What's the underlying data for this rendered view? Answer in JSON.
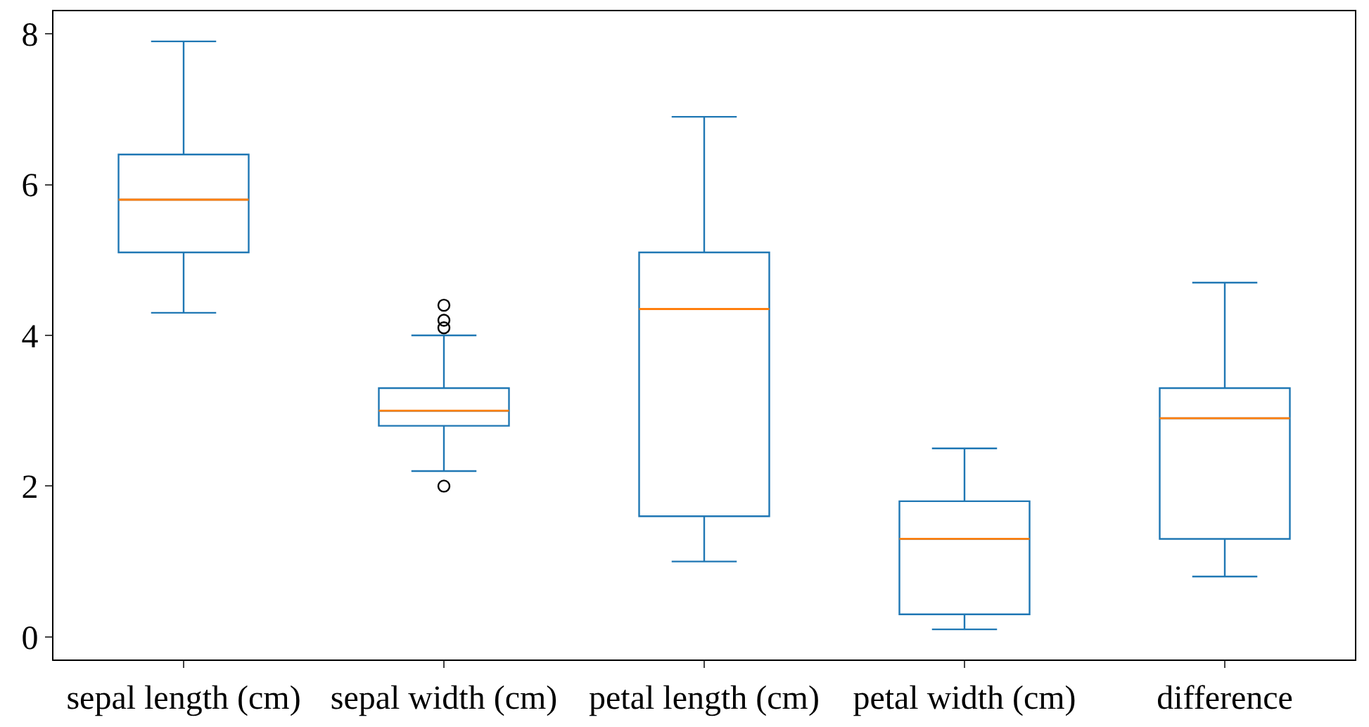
{
  "chart_data": {
    "type": "box",
    "categories": [
      "sepal length (cm)",
      "sepal width (cm)",
      "petal length (cm)",
      "petal width (cm)",
      "difference"
    ],
    "series": [
      {
        "color": "#1f77b4",
        "boxes": [
          {
            "low": 4.3,
            "q1": 5.1,
            "median": 5.8,
            "q3": 6.4,
            "high": 7.9
          },
          {
            "low": 2.2,
            "q1": 2.8,
            "median": 3.0,
            "q3": 3.3,
            "high": 4.0,
            "outliers": [
              4.4,
              4.1,
              4.2,
              2.0
            ]
          },
          {
            "low": 1.0,
            "q1": 1.6,
            "median": 4.35,
            "q3": 5.1,
            "high": 6.9
          },
          {
            "low": 0.1,
            "q1": 0.3,
            "median": 1.3,
            "q3": 1.8,
            "high": 2.5
          },
          {
            "low": 0.8,
            "q1": 1.3,
            "median": 2.9,
            "q3": 3.3,
            "high": 4.7
          }
        ]
      }
    ],
    "ylim": [
      -0.3,
      8.3
    ],
    "yticks": [
      0,
      2,
      4,
      6,
      8
    ],
    "grid": false
  }
}
